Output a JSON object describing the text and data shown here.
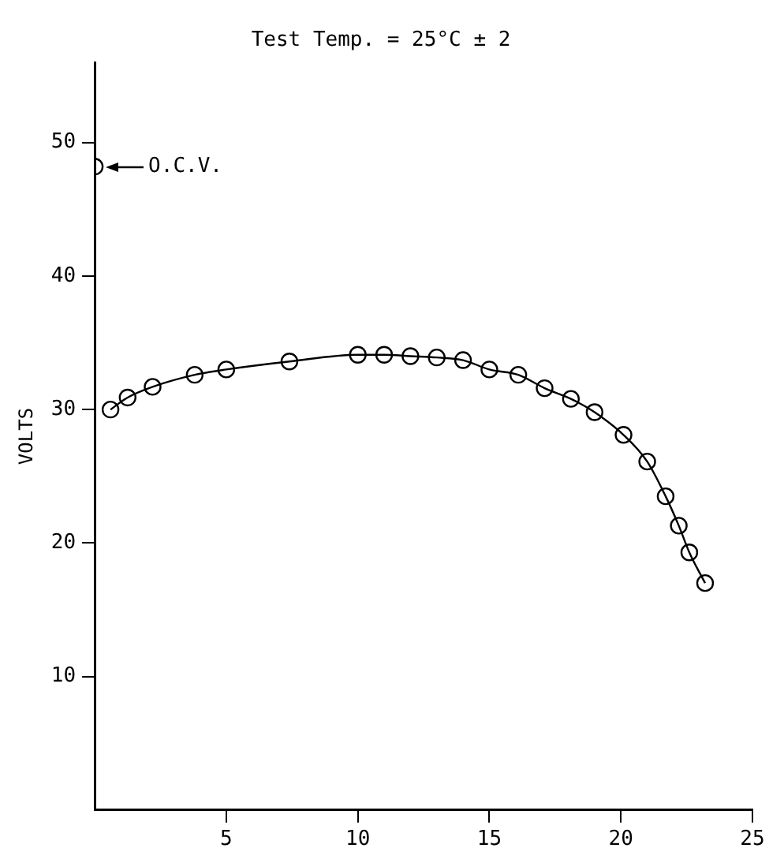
{
  "chart_data": {
    "type": "line",
    "title": "Test Temp. = 25°C ± 2",
    "ylabel": "VOLTS",
    "xlim": [
      0,
      25
    ],
    "xticks": [
      5,
      10,
      15,
      20,
      25
    ],
    "ylim": [
      0,
      56
    ],
    "yticks": [
      10,
      20,
      30,
      40,
      50
    ],
    "grid": false,
    "legend": false,
    "marker": "circle",
    "line_style": "solid",
    "series": [
      {
        "color": "#000000",
        "x": [
          0.6,
          1.25,
          2.2,
          3.8,
          5.0,
          7.4,
          10.0,
          11.0,
          12.0,
          13.0,
          14.0,
          15.0,
          16.1,
          17.1,
          18.1,
          19.0,
          20.1,
          21.0,
          21.7,
          22.2,
          22.6,
          23.2
        ],
        "values": [
          30.0,
          30.9,
          31.7,
          32.6,
          33.0,
          33.6,
          34.1,
          34.1,
          34.0,
          33.9,
          33.7,
          33.0,
          32.6,
          31.6,
          30.8,
          29.8,
          28.1,
          26.1,
          23.5,
          21.3,
          19.3,
          17.0
        ]
      },
      {
        "type": "scatter",
        "color": "#000000",
        "x": [
          0
        ],
        "values": [
          48.2
        ]
      }
    ],
    "annotations": [
      {
        "text": "O.C.V.",
        "x": 0,
        "y": 48.2
      }
    ]
  }
}
